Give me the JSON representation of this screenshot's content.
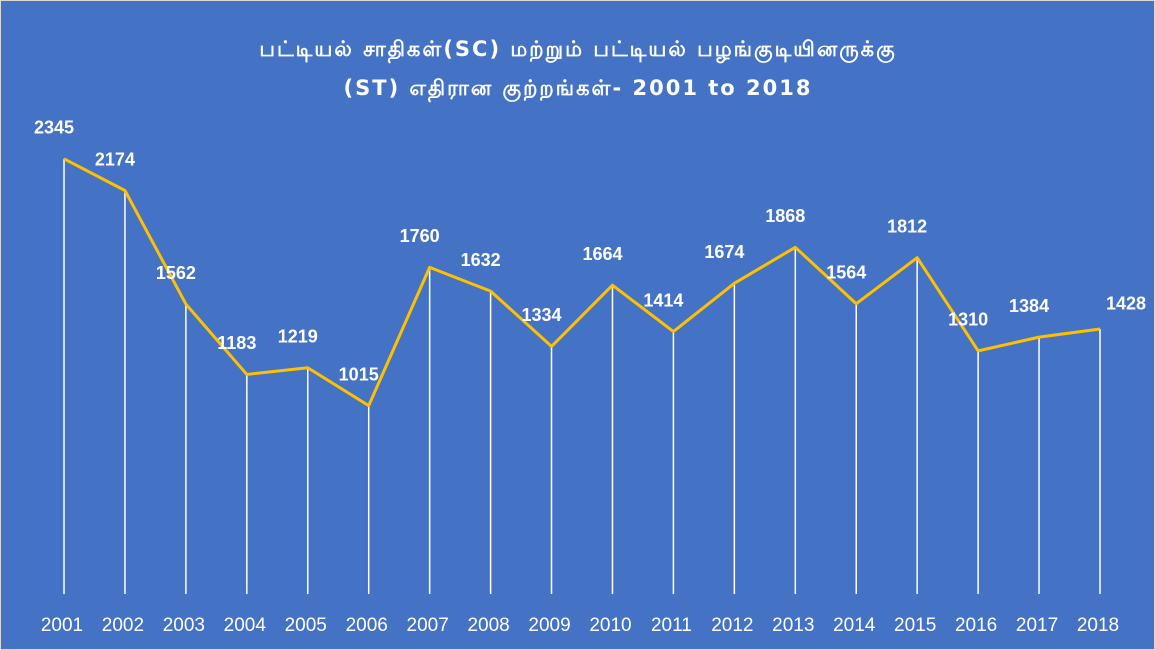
{
  "chart_data": {
    "type": "line",
    "title": [
      "பட்டியல் சாதிகள்(SC) மற்றும் பட்டியல் பழங்குடியினருக்கு",
      "(ST) எதிரான குற்றங்கள்- 2001 to 2018"
    ],
    "categories": [
      "2001",
      "2002",
      "2003",
      "2004",
      "2005",
      "2006",
      "2007",
      "2008",
      "2009",
      "2010",
      "2011",
      "2012",
      "2013",
      "2014",
      "2015",
      "2016",
      "2017",
      "2018"
    ],
    "values": [
      2345,
      2174,
      1562,
      1183,
      1219,
      1015,
      1760,
      1632,
      1334,
      1664,
      1414,
      1674,
      1868,
      1564,
      1812,
      1310,
      1384,
      1428
    ],
    "color": "#ffc000",
    "ylim": [
      0,
      2500
    ]
  }
}
